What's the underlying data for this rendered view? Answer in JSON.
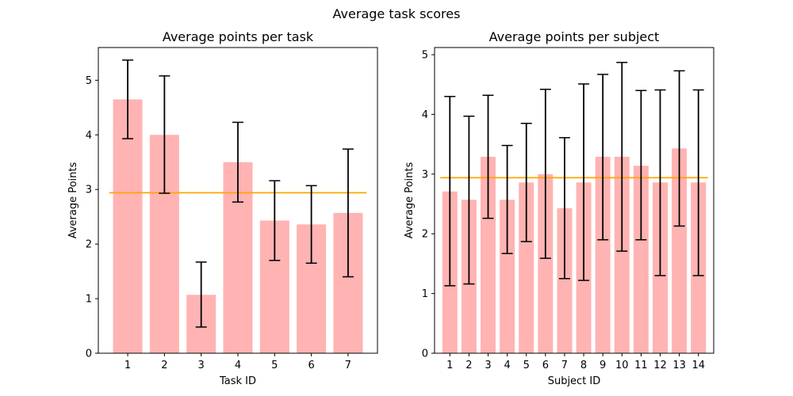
{
  "figure": {
    "suptitle": "Average task scores"
  },
  "chart_data": [
    {
      "type": "bar",
      "title": "Average points per task",
      "xlabel": "Task ID",
      "ylabel": "Average Points",
      "categories": [
        "1",
        "2",
        "3",
        "4",
        "5",
        "6",
        "7"
      ],
      "values": [
        4.65,
        4.0,
        1.07,
        3.5,
        2.43,
        2.36,
        2.57
      ],
      "error_low": [
        3.93,
        2.93,
        0.48,
        2.77,
        1.7,
        1.65,
        1.4
      ],
      "error_high": [
        5.37,
        5.08,
        1.67,
        4.23,
        3.16,
        3.07,
        3.74
      ],
      "mean_line": 2.94,
      "ylim": [
        0,
        5.6
      ],
      "yticks": [
        0,
        1,
        2,
        3,
        4,
        5
      ],
      "bar_color": "#ffb3b3",
      "error_color": "#000000",
      "mean_color": "#ffa500",
      "grid": false
    },
    {
      "type": "bar",
      "title": "Average points per subject",
      "xlabel": "Subject ID",
      "ylabel": "Average Points",
      "categories": [
        "1",
        "2",
        "3",
        "4",
        "5",
        "6",
        "7",
        "8",
        "9",
        "10",
        "11",
        "12",
        "13",
        "14"
      ],
      "values": [
        2.71,
        2.57,
        3.29,
        2.57,
        2.86,
        3.0,
        2.43,
        2.86,
        3.29,
        3.29,
        3.14,
        2.86,
        3.43,
        2.86
      ],
      "error_low": [
        1.13,
        1.16,
        2.26,
        1.67,
        1.87,
        1.59,
        1.25,
        1.22,
        1.9,
        1.71,
        1.9,
        1.3,
        2.13,
        1.3
      ],
      "error_high": [
        4.3,
        3.97,
        4.32,
        3.48,
        3.85,
        4.42,
        3.61,
        4.51,
        4.67,
        4.87,
        4.4,
        4.41,
        4.73,
        4.41
      ],
      "mean_line": 2.94,
      "ylim": [
        0,
        5.12
      ],
      "yticks": [
        0,
        1,
        2,
        3,
        4,
        5
      ],
      "bar_color": "#ffb3b3",
      "error_color": "#000000",
      "mean_color": "#ffa500",
      "grid": false
    }
  ]
}
